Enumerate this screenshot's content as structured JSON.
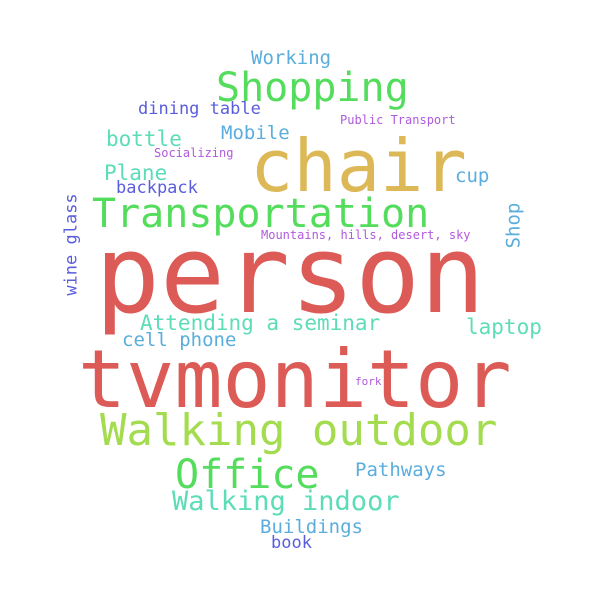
{
  "wordcloud": {
    "colors": {
      "red": "#dc5b57",
      "gold": "#dcb857",
      "green": "#54dc5d",
      "lime": "#a4dc4f",
      "teal": "#5ddcb8",
      "sky": "#5aaddc",
      "indigo": "#5a5ddc",
      "violet": "#b05adc"
    },
    "words": [
      {
        "text": "person",
        "color": "#dc5b57"
      },
      {
        "text": "tvmonitor",
        "color": "#dc5b57"
      },
      {
        "text": "chair",
        "color": "#dcb857"
      },
      {
        "text": "Transportation",
        "color": "#54dc5d"
      },
      {
        "text": "Walking outdoor",
        "color": "#a4dc4f"
      },
      {
        "text": "Shopping",
        "color": "#54dc5d"
      },
      {
        "text": "Office",
        "color": "#54dc5d"
      },
      {
        "text": "Walking indoor",
        "color": "#5ddcb8"
      },
      {
        "text": "Attending a seminar",
        "color": "#5ddcb8"
      },
      {
        "text": "laptop",
        "color": "#5ddcb8"
      },
      {
        "text": "cell phone",
        "color": "#5aaddc"
      },
      {
        "text": "Pathways",
        "color": "#5aaddc"
      },
      {
        "text": "Buildings",
        "color": "#5aaddc"
      },
      {
        "text": "bottle",
        "color": "#5ddcb8"
      },
      {
        "text": "Plane",
        "color": "#5ddcb8"
      },
      {
        "text": "Mobile",
        "color": "#5aaddc"
      },
      {
        "text": "Working",
        "color": "#5aaddc"
      },
      {
        "text": "dining table",
        "color": "#5a5ddc"
      },
      {
        "text": "cup",
        "color": "#5aaddc"
      },
      {
        "text": "backpack",
        "color": "#5a5ddc"
      },
      {
        "text": "book",
        "color": "#5a5ddc"
      },
      {
        "text": "Public Transport",
        "color": "#b05adc"
      },
      {
        "text": "Socializing",
        "color": "#b05adc"
      },
      {
        "text": "Mountains, hills, desert, sky",
        "color": "#b05adc"
      },
      {
        "text": "fork",
        "color": "#b05adc"
      },
      {
        "text": "Shop",
        "color": "#5aaddc"
      },
      {
        "text": "wine glass",
        "color": "#5a5ddc"
      }
    ]
  }
}
